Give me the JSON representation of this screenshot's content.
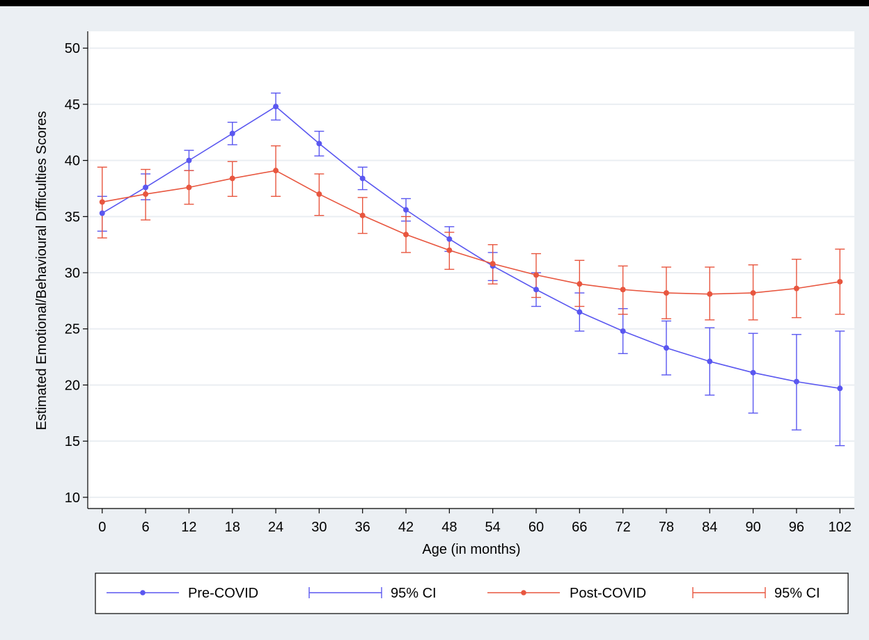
{
  "chart_data": {
    "type": "line",
    "title": "",
    "xlabel": "Age (in months)",
    "ylabel": "Estimated Emotional/Behavioural Difficulties Scores",
    "x": [
      0,
      6,
      12,
      18,
      24,
      30,
      36,
      42,
      48,
      54,
      60,
      66,
      72,
      78,
      84,
      90,
      96,
      102
    ],
    "xticks": [
      "0",
      "6",
      "12",
      "18",
      "24",
      "30",
      "36",
      "42",
      "48",
      "54",
      "60",
      "66",
      "72",
      "78",
      "84",
      "90",
      "96",
      "102"
    ],
    "yticks": [
      "10",
      "15",
      "20",
      "25",
      "30",
      "35",
      "40",
      "45",
      "50"
    ],
    "xlim": [
      -2,
      104
    ],
    "ylim": [
      9,
      51.5
    ],
    "grid": true,
    "legend_position": "bottom",
    "legend": [
      "Pre-COVID",
      "95% CI",
      "Post-COVID",
      "95% CI"
    ],
    "series": [
      {
        "name": "Pre-COVID",
        "color": "#5a57f0",
        "values": [
          35.3,
          37.6,
          40.0,
          42.4,
          44.8,
          41.5,
          38.4,
          35.6,
          33.0,
          30.6,
          28.5,
          26.5,
          24.8,
          23.3,
          22.1,
          21.1,
          20.3,
          19.7
        ],
        "ci_lower": [
          33.7,
          36.5,
          39.1,
          41.4,
          43.6,
          40.4,
          37.4,
          34.6,
          31.9,
          29.3,
          27.0,
          24.8,
          22.8,
          20.9,
          19.1,
          17.5,
          16.0,
          14.6
        ],
        "ci_upper": [
          36.8,
          38.8,
          40.9,
          43.4,
          46.0,
          42.6,
          39.4,
          36.6,
          34.1,
          31.8,
          30.0,
          28.2,
          26.8,
          25.7,
          25.1,
          24.6,
          24.5,
          24.8
        ]
      },
      {
        "name": "Post-COVID",
        "color": "#e8563f",
        "values": [
          36.3,
          37.0,
          37.6,
          38.4,
          39.1,
          37.0,
          35.1,
          33.4,
          32.0,
          30.8,
          29.8,
          29.0,
          28.5,
          28.2,
          28.1,
          28.2,
          28.6,
          29.2
        ],
        "ci_lower": [
          33.1,
          34.7,
          36.1,
          36.8,
          36.8,
          35.1,
          33.5,
          31.8,
          30.3,
          29.0,
          27.8,
          27.0,
          26.3,
          25.9,
          25.8,
          25.8,
          26.0,
          26.3
        ],
        "ci_upper": [
          39.4,
          39.2,
          39.1,
          39.9,
          41.3,
          38.8,
          36.7,
          35.0,
          33.6,
          32.5,
          31.7,
          31.1,
          30.6,
          30.5,
          30.5,
          30.7,
          31.2,
          32.1
        ]
      }
    ]
  }
}
